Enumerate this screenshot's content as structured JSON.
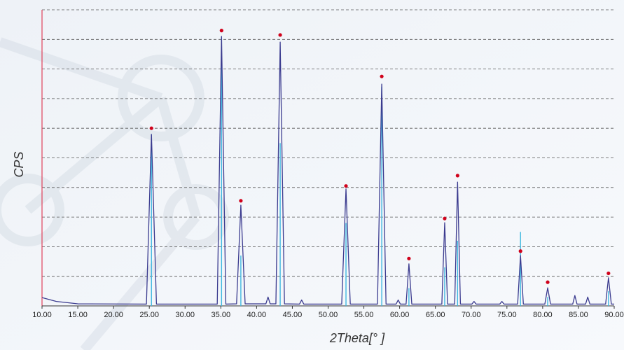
{
  "chart_data": {
    "type": "line",
    "x_label": "2Theta[° ]",
    "y_label": "CPS",
    "xlim": [
      10,
      90
    ],
    "ylim": [
      0,
      10
    ],
    "xticks": [
      {
        "value": 10,
        "label": "10.00"
      },
      {
        "value": 15,
        "label": "15.00"
      },
      {
        "value": 20,
        "label": "20.00"
      },
      {
        "value": 25,
        "label": "25.00"
      },
      {
        "value": 30,
        "label": "30.00"
      },
      {
        "value": 35,
        "label": "35.00"
      },
      {
        "value": 40,
        "label": "40.00"
      },
      {
        "value": 45,
        "label": "45.00"
      },
      {
        "value": 50,
        "label": "50.00"
      },
      {
        "value": 55,
        "label": "55.00"
      },
      {
        "value": 60,
        "label": "60.00"
      },
      {
        "value": 65,
        "label": "65.00"
      },
      {
        "value": 70,
        "label": "70.00"
      },
      {
        "value": 75,
        "label": "75.00"
      },
      {
        "value": 80,
        "label": "80.00"
      },
      {
        "value": 85,
        "label": "85.00"
      },
      {
        "value": 90,
        "label": "90.00"
      }
    ],
    "yticks": [
      1,
      2,
      3,
      4,
      5,
      6,
      7,
      8,
      9,
      10
    ],
    "ytick_labels": false,
    "grid": true,
    "series": [
      {
        "color": "#3b3b8f",
        "x": [
          10,
          12,
          15,
          24.6,
          25.3,
          26.0,
          34.5,
          35.1,
          35.7,
          37.2,
          37.8,
          38.4,
          41.3,
          41.6,
          41.9,
          42.7,
          43.3,
          43.9,
          46.0,
          46.3,
          46.6,
          51.9,
          52.5,
          53.1,
          56.9,
          57.5,
          58.1,
          59.5,
          59.8,
          60.1,
          60.9,
          61.3,
          61.7,
          65.9,
          66.3,
          66.7,
          67.7,
          68.1,
          68.5,
          70.1,
          70.4,
          70.7,
          74.0,
          74.3,
          74.6,
          76.5,
          76.9,
          77.3,
          80.3,
          80.7,
          81.1,
          84.2,
          84.5,
          84.8,
          86.0,
          86.3,
          86.6,
          88.8,
          89.2,
          89.6,
          90
        ],
        "values": [
          0.28,
          0.15,
          0.07,
          0.06,
          5.79,
          0.06,
          0.06,
          9.1,
          0.06,
          0.07,
          3.4,
          0.07,
          0.07,
          0.3,
          0.07,
          0.07,
          8.91,
          0.07,
          0.06,
          0.2,
          0.06,
          0.06,
          3.95,
          0.06,
          0.06,
          7.49,
          0.06,
          0.06,
          0.2,
          0.06,
          0.06,
          1.42,
          0.06,
          0.06,
          2.81,
          0.06,
          0.06,
          4.18,
          0.06,
          0.06,
          0.15,
          0.06,
          0.06,
          0.15,
          0.06,
          0.06,
          1.7,
          0.06,
          0.06,
          0.61,
          0.06,
          0.06,
          0.35,
          0.06,
          0.06,
          0.3,
          0.06,
          0.06,
          0.95,
          0.06,
          0.06
        ]
      }
    ],
    "sticks": {
      "color": "#3fb8e0",
      "x": [
        25.3,
        35.1,
        37.8,
        43.3,
        52.5,
        57.5,
        61.3,
        66.3,
        68.1,
        76.9,
        80.7,
        89.2
      ],
      "values": [
        5.8,
        9.1,
        1.7,
        5.5,
        2.8,
        7.4,
        0.6,
        1.3,
        2.2,
        2.5,
        0.3,
        0.5
      ]
    },
    "peak_markers": {
      "color": "#d0021b",
      "x": [
        25.3,
        35.1,
        37.8,
        43.3,
        52.5,
        57.5,
        61.3,
        66.3,
        68.1,
        76.9,
        80.7,
        89.2
      ],
      "values": [
        6.0,
        9.3,
        3.55,
        9.15,
        4.05,
        7.75,
        1.6,
        2.95,
        4.4,
        1.85,
        0.8,
        1.1
      ]
    }
  }
}
